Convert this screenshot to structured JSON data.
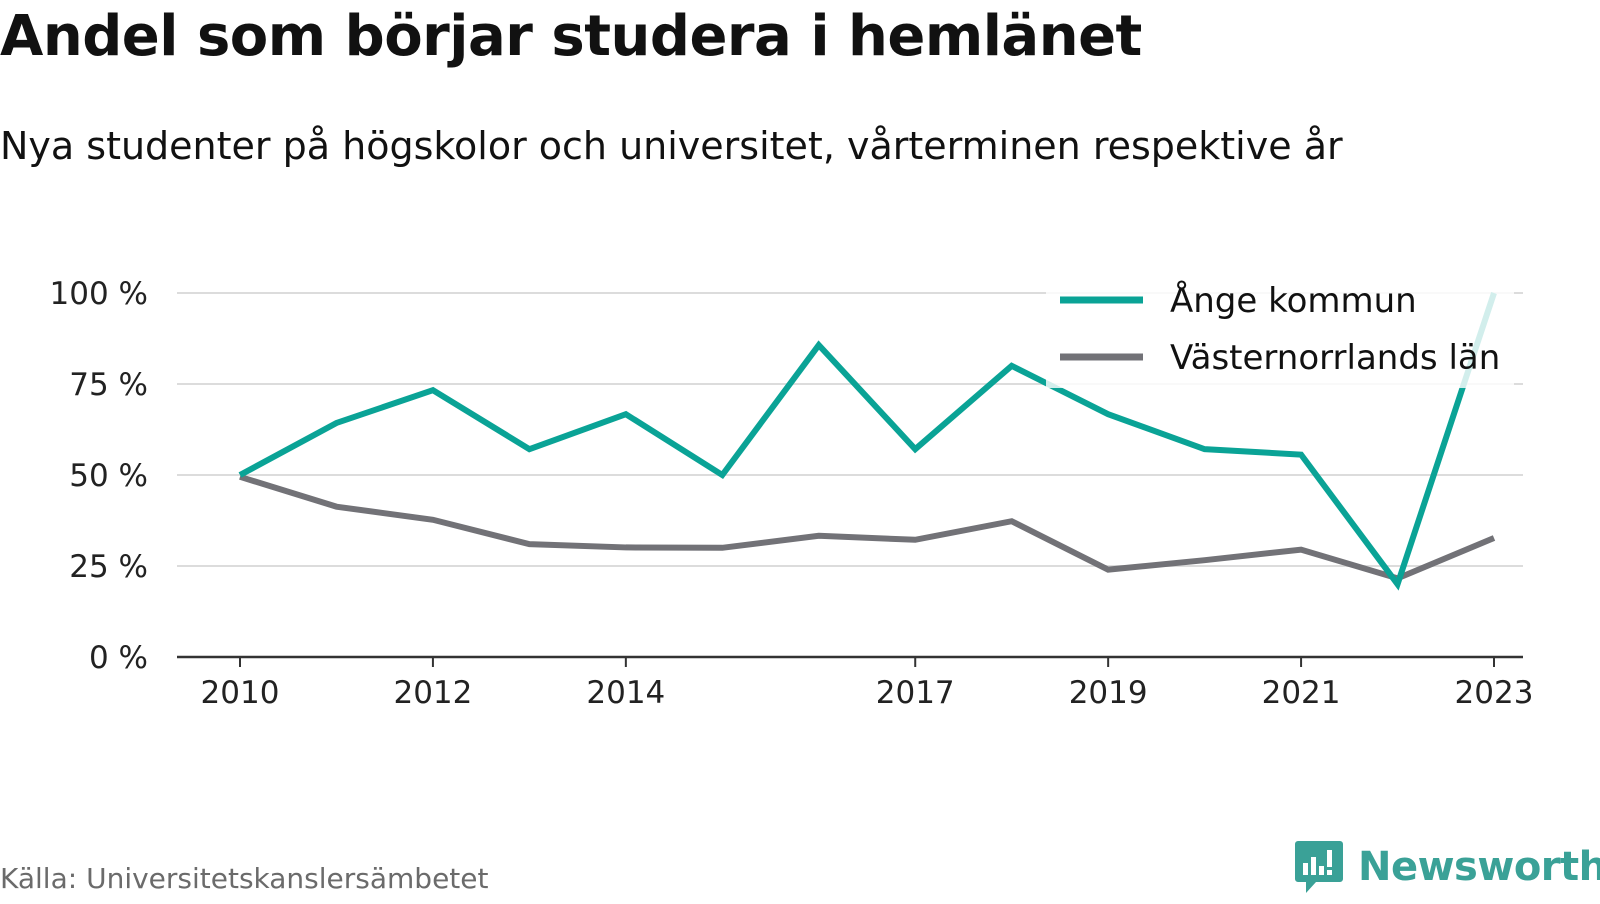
{
  "title": "Andel som börjar studera i hemlänet",
  "subtitle": "Nya studenter på högskolor och universitet, vårterminen respektive år",
  "source": "Källa: Universitetskanslersämbetet",
  "brand": {
    "name": "Newsworthy",
    "logo_icon": "bar-chart-speech-bubble-icon",
    "color": "#3aa197"
  },
  "colors": {
    "ange": "#0aa396",
    "lan": "#727277",
    "grid": "#dcdcdc",
    "axis": "#333333"
  },
  "chart_data": {
    "type": "line",
    "x": [
      2010,
      2011,
      2012,
      2013,
      2014,
      2015,
      2016,
      2017,
      2018,
      2019,
      2020,
      2021,
      2022,
      2023
    ],
    "x_tick_labels": [
      "2010",
      "2012",
      "2014",
      "2017",
      "2019",
      "2021",
      "2023"
    ],
    "y_tick_labels": [
      "100 %",
      "75 %",
      "50 %",
      "25 %",
      "0 %"
    ],
    "y_ticks": [
      100,
      75,
      50,
      25,
      0
    ],
    "ylim": [
      0,
      100
    ],
    "ylabel": "",
    "xlabel": "",
    "grid": true,
    "legend_position": "top-right",
    "series": [
      {
        "name": "Ånge kommun",
        "color": "#0aa396",
        "values": [
          50,
          64.3,
          73.3,
          57.1,
          66.7,
          50,
          85.7,
          57.1,
          80,
          66.7,
          57.1,
          55.6,
          20,
          100
        ]
      },
      {
        "name": "Västernorrlands län",
        "color": "#727277",
        "values": [
          49.5,
          41.3,
          37.7,
          31,
          30.1,
          30,
          33.3,
          32.2,
          37.3,
          24,
          26.6,
          29.5,
          21.6,
          32.7
        ]
      }
    ]
  }
}
